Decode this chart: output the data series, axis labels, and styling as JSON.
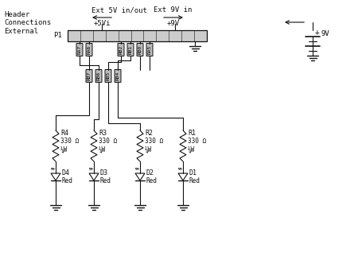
{
  "bg_color": "#ffffff",
  "line_color": "#111111",
  "label_header": "Header\nConnections\nExternal",
  "label_ext5v": "Ext 5V in/out",
  "label_ext9v": "Ext 9V in",
  "label_p1": "P1",
  "label_5vi": "+5Vi",
  "label_9v": "+9V",
  "label_9v_batt": "9V",
  "pins_top_left": [
    "RA7",
    "RA6"
  ],
  "pins_top_right": [
    "RB2",
    "RB1",
    "RB0",
    "RA5"
  ],
  "pins_mid": [
    "RB7",
    "RB6",
    "RB5",
    "RB4"
  ],
  "res_labels": [
    "R4",
    "R3",
    "R2",
    "R1"
  ],
  "res_val": "330 Ω",
  "res_watt": "¼W",
  "led_labels": [
    "D4",
    "D3",
    "D2",
    "D1"
  ],
  "led_color": "Red"
}
